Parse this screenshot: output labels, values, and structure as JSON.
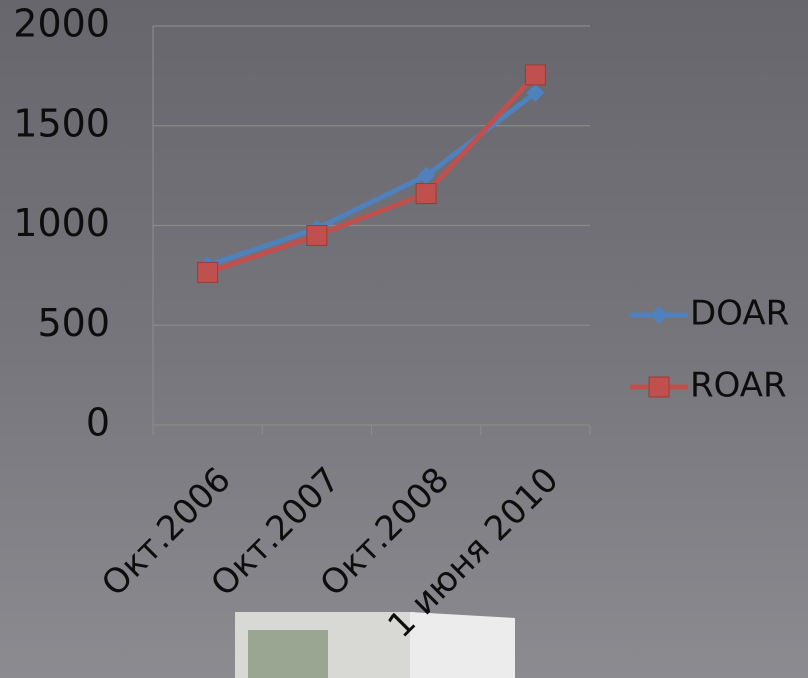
{
  "chart_data": {
    "type": "line",
    "categories": [
      "Окт.2006",
      "Окт.2007",
      "Окт.2008",
      "1 июня 2010"
    ],
    "series": [
      {
        "name": "DOAR",
        "color": "#4f81bd",
        "marker": "diamond",
        "values": [
          800,
          985,
          1250,
          1665
        ]
      },
      {
        "name": "ROAR",
        "color": "#c0504d",
        "marker": "square",
        "values": [
          765,
          950,
          1160,
          1755
        ]
      }
    ],
    "ylim": [
      0,
      2000
    ],
    "yticks": [
      0,
      500,
      1000,
      1500,
      2000
    ],
    "grid": true,
    "legend": "right"
  }
}
